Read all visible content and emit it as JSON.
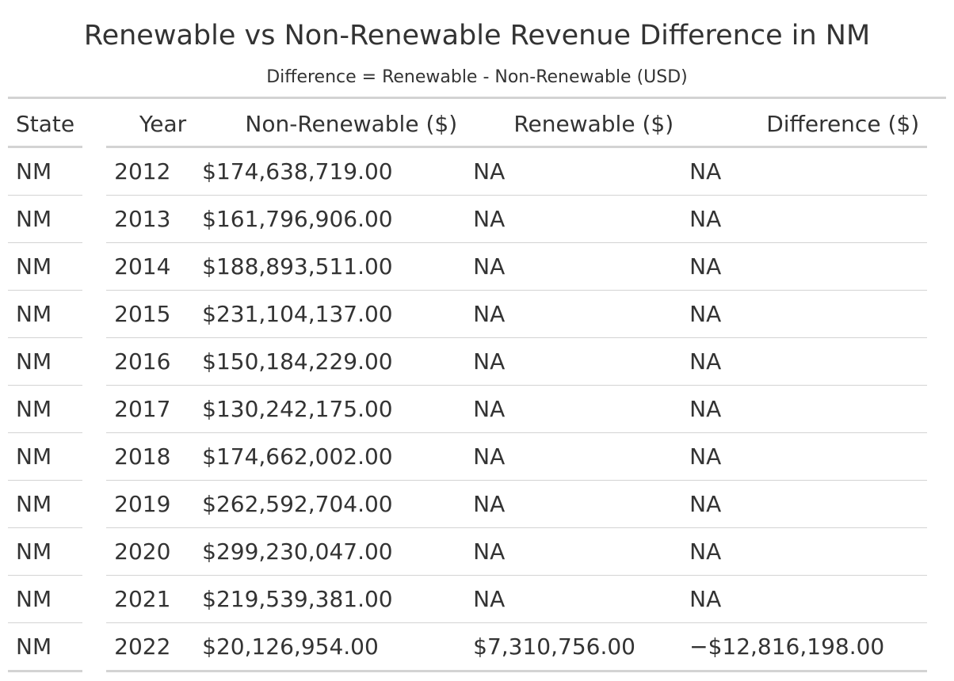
{
  "title": "Renewable vs Non-Renewable Revenue Difference in NM",
  "subtitle": "Difference = Renewable - Non-Renewable (USD)",
  "columns": {
    "state": "State",
    "year": "Year",
    "non_renewable": "Non-Renewable ($)",
    "renewable": "Renewable ($)",
    "difference": "Difference ($)"
  },
  "rows": [
    {
      "state": "NM",
      "year": "2012",
      "non_renewable": "$174,638,719.00",
      "renewable": "NA",
      "difference": "NA"
    },
    {
      "state": "NM",
      "year": "2013",
      "non_renewable": "$161,796,906.00",
      "renewable": "NA",
      "difference": "NA"
    },
    {
      "state": "NM",
      "year": "2014",
      "non_renewable": "$188,893,511.00",
      "renewable": "NA",
      "difference": "NA"
    },
    {
      "state": "NM",
      "year": "2015",
      "non_renewable": "$231,104,137.00",
      "renewable": "NA",
      "difference": "NA"
    },
    {
      "state": "NM",
      "year": "2016",
      "non_renewable": "$150,184,229.00",
      "renewable": "NA",
      "difference": "NA"
    },
    {
      "state": "NM",
      "year": "2017",
      "non_renewable": "$130,242,175.00",
      "renewable": "NA",
      "difference": "NA"
    },
    {
      "state": "NM",
      "year": "2018",
      "non_renewable": "$174,662,002.00",
      "renewable": "NA",
      "difference": "NA"
    },
    {
      "state": "NM",
      "year": "2019",
      "non_renewable": "$262,592,704.00",
      "renewable": "NA",
      "difference": "NA"
    },
    {
      "state": "NM",
      "year": "2020",
      "non_renewable": "$299,230,047.00",
      "renewable": "NA",
      "difference": "NA"
    },
    {
      "state": "NM",
      "year": "2021",
      "non_renewable": "$219,539,381.00",
      "renewable": "NA",
      "difference": "NA"
    },
    {
      "state": "NM",
      "year": "2022",
      "non_renewable": "$20,126,954.00",
      "renewable": "$7,310,756.00",
      "difference": "−$12,816,198.00"
    }
  ]
}
